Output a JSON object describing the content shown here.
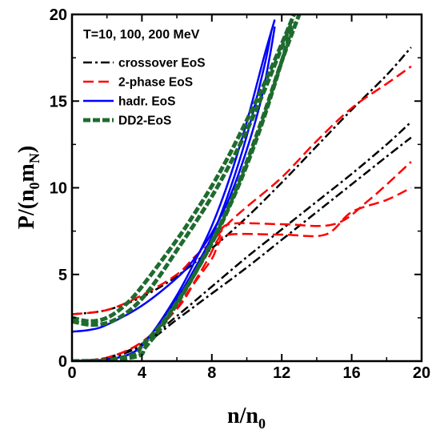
{
  "chart_data": {
    "type": "line",
    "title": "",
    "annotation": "T=10, 100, 200 MeV",
    "xlabel": {
      "main": "n/n",
      "sub": "0"
    },
    "ylabel": {
      "main": "P/(n",
      "sub1": "0",
      "mid": "m",
      "sub2": "N",
      "end": ")"
    },
    "xlim": [
      0,
      20
    ],
    "ylim": [
      0,
      20
    ],
    "xticks": [
      0,
      4,
      8,
      12,
      16,
      20
    ],
    "yticks": [
      0,
      5,
      10,
      15,
      20
    ],
    "xtick_labels": [
      "0",
      "4",
      "8",
      "12",
      "16",
      "20"
    ],
    "ytick_labels": [
      "0",
      "5",
      "10",
      "15",
      "20"
    ],
    "grid": false,
    "legend_position": "top-left",
    "legend": [
      {
        "name": "crossover EoS",
        "color": "#000000",
        "dash": "dashdot",
        "width": 2.5
      },
      {
        "name": "2-phase EoS",
        "color": "#ff0000",
        "dash": "dashed",
        "width": 2.5
      },
      {
        "name": "hadr. EoS",
        "color": "#0000ff",
        "dash": "solid",
        "width": 2.5
      },
      {
        "name": "DD2-EoS",
        "color": "#1e6b2e",
        "dash": "dotted-thick",
        "width": 5
      }
    ],
    "series": [
      {
        "style": 0,
        "points": [
          [
            0,
            0
          ],
          [
            2,
            0.15
          ],
          [
            4,
            0.9
          ],
          [
            6,
            2.4
          ],
          [
            8,
            3.9
          ],
          [
            10,
            5.4
          ],
          [
            12,
            7.0
          ],
          [
            14,
            8.6
          ],
          [
            16,
            10.2
          ],
          [
            18,
            11.8
          ],
          [
            19.4,
            12.9
          ]
        ]
      },
      {
        "style": 0,
        "points": [
          [
            0,
            0
          ],
          [
            2,
            0.2
          ],
          [
            4,
            1.0
          ],
          [
            6,
            2.6
          ],
          [
            8,
            4.3
          ],
          [
            10,
            6.0
          ],
          [
            12,
            7.6
          ],
          [
            14,
            9.2
          ],
          [
            16,
            10.8
          ],
          [
            18,
            12.5
          ],
          [
            19.4,
            13.8
          ]
        ]
      },
      {
        "style": 0,
        "points": [
          [
            0,
            2.7
          ],
          [
            2,
            2.95
          ],
          [
            4,
            3.7
          ],
          [
            6,
            4.9
          ],
          [
            8,
            6.5
          ],
          [
            10,
            8.3
          ],
          [
            12,
            10.3
          ],
          [
            14,
            12.4
          ],
          [
            16,
            14.5
          ],
          [
            18,
            16.5
          ],
          [
            19.4,
            18.1
          ]
        ]
      },
      {
        "style": 1,
        "points": [
          [
            0,
            0
          ],
          [
            2,
            0.2
          ],
          [
            4,
            1.1
          ],
          [
            6,
            3.0
          ],
          [
            7,
            4.5
          ],
          [
            8,
            5.9
          ],
          [
            8.4,
            6.8
          ],
          [
            9,
            7.3
          ],
          [
            12,
            7.3
          ],
          [
            14.5,
            7.3
          ],
          [
            16,
            8.6
          ],
          [
            18,
            9.3
          ],
          [
            19.4,
            10.0
          ]
        ]
      },
      {
        "style": 1,
        "points": [
          [
            0,
            0
          ],
          [
            2,
            0.2
          ],
          [
            4,
            1.1
          ],
          [
            6,
            3.1
          ],
          [
            7.5,
            5.4
          ],
          [
            8.4,
            7.1
          ],
          [
            9,
            7.9
          ],
          [
            12,
            7.9
          ],
          [
            15,
            7.9
          ],
          [
            17,
            9.3
          ],
          [
            19.4,
            11.5
          ]
        ]
      },
      {
        "style": 1,
        "points": [
          [
            0,
            2.7
          ],
          [
            2,
            2.95
          ],
          [
            4,
            3.8
          ],
          [
            6,
            5.0
          ],
          [
            7,
            6.0
          ],
          [
            8,
            6.9
          ],
          [
            9,
            8.0
          ],
          [
            10,
            8.9
          ],
          [
            12,
            10.6
          ],
          [
            14,
            12.7
          ],
          [
            16,
            14.6
          ],
          [
            18,
            16.0
          ],
          [
            19.4,
            17.0
          ]
        ]
      },
      {
        "style": 2,
        "points": [
          [
            0,
            0
          ],
          [
            2,
            0.1
          ],
          [
            3.5,
            0.5
          ],
          [
            4.5,
            1.5
          ],
          [
            6,
            3.6
          ],
          [
            7,
            5.3
          ],
          [
            8,
            7.2
          ],
          [
            9,
            9.8
          ],
          [
            10,
            13.0
          ],
          [
            11,
            17.0
          ],
          [
            11.4,
            19.0
          ]
        ]
      },
      {
        "style": 2,
        "points": [
          [
            0,
            0
          ],
          [
            2,
            0.1
          ],
          [
            3.5,
            0.5
          ],
          [
            4.5,
            1.5
          ],
          [
            6,
            3.8
          ],
          [
            7,
            5.7
          ],
          [
            8,
            7.8
          ],
          [
            9,
            10.5
          ],
          [
            10,
            13.8
          ],
          [
            11,
            17.6
          ],
          [
            11.6,
            19.7
          ]
        ]
      },
      {
        "style": 2,
        "points": [
          [
            0,
            1.7
          ],
          [
            1,
            1.8
          ],
          [
            2,
            2.1
          ],
          [
            4,
            3.2
          ],
          [
            6,
            4.8
          ],
          [
            7,
            5.9
          ],
          [
            8,
            7.4
          ],
          [
            9,
            9.4
          ],
          [
            10,
            12.2
          ],
          [
            10.8,
            15.0
          ],
          [
            11.3,
            17.5
          ],
          [
            11.6,
            19.3
          ]
        ]
      },
      {
        "style": 3,
        "points": [
          [
            0,
            0
          ],
          [
            2,
            0.05
          ],
          [
            3.6,
            0.4
          ],
          [
            4,
            0.9
          ],
          [
            5,
            2.0
          ],
          [
            6,
            3.4
          ],
          [
            7,
            5.0
          ],
          [
            8,
            6.8
          ],
          [
            9,
            8.9
          ],
          [
            10,
            11.3
          ],
          [
            11,
            14.1
          ],
          [
            12,
            17.3
          ],
          [
            12.6,
            19.3
          ]
        ]
      },
      {
        "style": 3,
        "points": [
          [
            0,
            0
          ],
          [
            2,
            0.05
          ],
          [
            3.8,
            0.3
          ],
          [
            4.2,
            0.8
          ],
          [
            5,
            1.8
          ],
          [
            6,
            3.3
          ],
          [
            7,
            5.0
          ],
          [
            8,
            6.9
          ],
          [
            9,
            9.0
          ],
          [
            10,
            11.5
          ],
          [
            11,
            14.3
          ],
          [
            12,
            17.3
          ],
          [
            13,
            20.0
          ]
        ]
      },
      {
        "style": 3,
        "points": [
          [
            0,
            2.5
          ],
          [
            1,
            2.3
          ],
          [
            2,
            2.5
          ],
          [
            3,
            3.2
          ],
          [
            4,
            4.3
          ],
          [
            6,
            7.0
          ],
          [
            7,
            8.5
          ],
          [
            8,
            10.1
          ],
          [
            9,
            11.9
          ],
          [
            10,
            13.9
          ],
          [
            11,
            16.0
          ],
          [
            12,
            18.3
          ],
          [
            12.7,
            20.0
          ]
        ]
      },
      {
        "style": 3,
        "points": [
          [
            0,
            2.3
          ],
          [
            1,
            2.1
          ],
          [
            2,
            2.2
          ],
          [
            3,
            2.7
          ],
          [
            4,
            3.6
          ],
          [
            5,
            4.9
          ],
          [
            6,
            6.4
          ],
          [
            7,
            7.9
          ],
          [
            8,
            9.5
          ],
          [
            9,
            11.3
          ],
          [
            10,
            13.3
          ],
          [
            11,
            15.6
          ],
          [
            12,
            18.1
          ],
          [
            12.6,
            19.6
          ]
        ]
      }
    ]
  }
}
